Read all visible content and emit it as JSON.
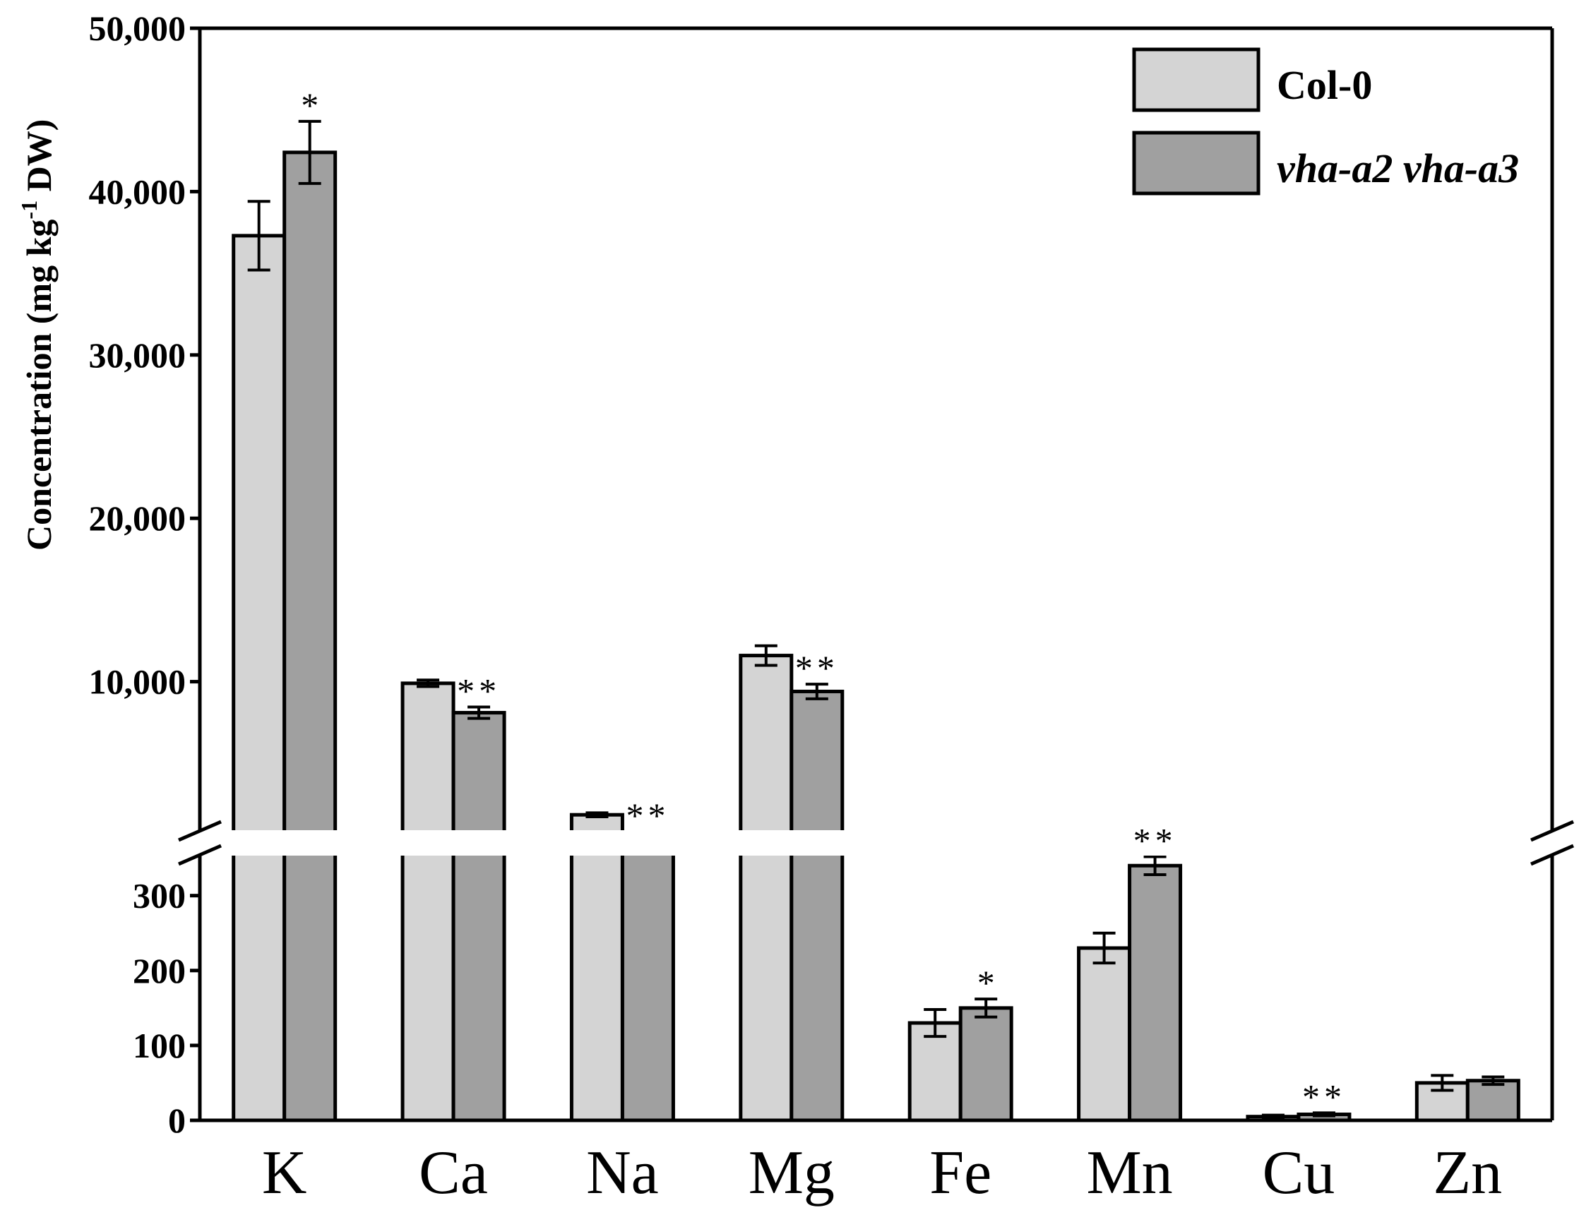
{
  "chart_data": {
    "type": "bar",
    "ylabel_main": "Concentration (mg kg",
    "ylabel_sup": "-1",
    "ylabel_tail": " DW)",
    "categories": [
      "K",
      "Ca",
      "Na",
      "Mg",
      "Fe",
      "Mn",
      "Cu",
      "Zn"
    ],
    "series": [
      {
        "name": "Col-0",
        "color": "#d4d4d4",
        "values": [
          37300,
          9900,
          1850,
          11600,
          130,
          230,
          5,
          50
        ],
        "errors": [
          2100,
          200,
          120,
          600,
          18,
          20,
          2,
          10
        ],
        "significance": [
          "",
          "",
          "",
          "",
          "",
          "",
          "",
          ""
        ]
      },
      {
        "name": "vha-a2 vha-a3",
        "color": "#a0a0a0",
        "values": [
          42400,
          8100,
          750,
          9400,
          150,
          340,
          8,
          53
        ],
        "errors": [
          1900,
          350,
          70,
          450,
          12,
          12,
          2,
          5
        ],
        "significance": [
          "*",
          "**",
          "**",
          "**",
          "*",
          "**",
          "**",
          ""
        ]
      }
    ],
    "upper_axis": {
      "ylim": [
        0,
        50000
      ],
      "ticks": [
        10000,
        20000,
        30000,
        40000,
        50000
      ],
      "tick_labels": [
        "10,000",
        "20,000",
        "30,000",
        "40,000",
        "50,000"
      ]
    },
    "lower_axis": {
      "ylim": [
        0,
        360
      ],
      "ticks": [
        0,
        100,
        200,
        300
      ],
      "tick_labels": [
        "0",
        "100",
        "200",
        "300"
      ]
    },
    "axis_break": true,
    "legend_position": "top-right",
    "grid": false
  }
}
